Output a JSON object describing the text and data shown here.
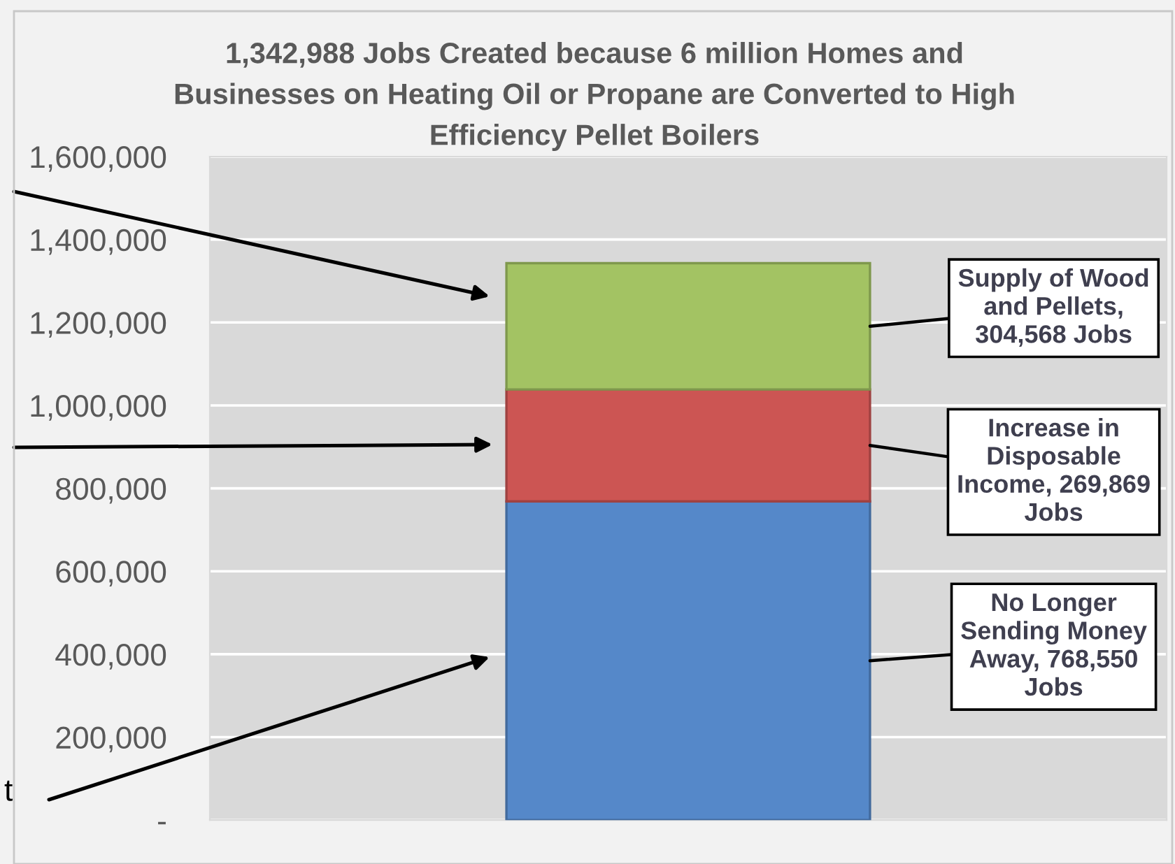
{
  "chart_data": {
    "type": "bar",
    "title": "1,342,988 Jobs Created because 6 million Homes and\nBusinesses on Heating Oil or Propane are Converted to High\nEfficiency Pellet Boilers",
    "categories": [
      null
    ],
    "stacked": true,
    "series": [
      {
        "color": "#5588c9",
        "values": [
          768550
        ],
        "value_labels": [
          "No Longer\nSending Money\nAway, 768,550\nJobs"
        ]
      },
      {
        "color": "#cc5553",
        "values": [
          269869
        ],
        "value_labels": [
          "Increase in\nDisposable\nIncome, 269,869\nJobs"
        ]
      },
      {
        "color": "#a3c363",
        "values": [
          304568
        ],
        "value_labels": [
          "Supply of Wood\nand Pellets,\n304,568 Jobs"
        ]
      }
    ],
    "ylim": [
      0,
      1600000
    ],
    "yticks": [
      {
        "value": 0,
        "label": "-"
      },
      {
        "value": 200000,
        "label": "200,000"
      },
      {
        "value": 400000,
        "label": "400,000"
      },
      {
        "value": 600000,
        "label": "600,000"
      },
      {
        "value": 800000,
        "label": "800,000"
      },
      {
        "value": 1000000,
        "label": "1,000,000"
      },
      {
        "value": 1200000,
        "label": "1,200,000"
      },
      {
        "value": 1400000,
        "label": "1,400,000"
      },
      {
        "value": 1600000,
        "label": "1,600,000"
      }
    ],
    "grid": "y",
    "annotations": [
      "t"
    ]
  }
}
